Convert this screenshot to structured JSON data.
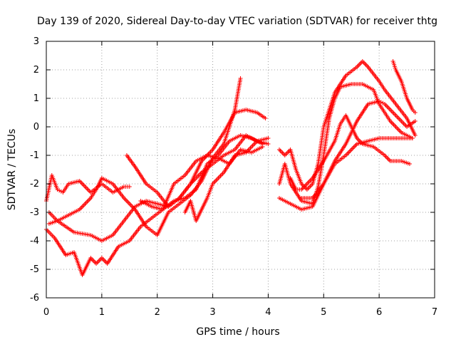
{
  "chart_data": {
    "type": "scatter",
    "title": "Day 139 of 2020, Sidereal Day-to-day VTEC variation (SDTVAR) for receiver thtg",
    "xlabel": "GPS time / hours",
    "ylabel": "SDTVAR / TECUs",
    "xlim": [
      0,
      7
    ],
    "ylim": [
      -6,
      3
    ],
    "grid": true,
    "marker": "+",
    "series_color": "#ff0000",
    "x_ticks": [
      "0",
      "1",
      "2",
      "3",
      "4",
      "5",
      "6",
      "7"
    ],
    "y_ticks": [
      "-6",
      "-5",
      "-4",
      "-3",
      "-2",
      "-1",
      "0",
      "1",
      "2",
      "3"
    ],
    "series": [
      {
        "points": [
          [
            0.0,
            -2.6
          ],
          [
            0.1,
            -1.7
          ],
          [
            0.2,
            -2.2
          ],
          [
            0.3,
            -2.3
          ],
          [
            0.4,
            -2.0
          ],
          [
            0.6,
            -1.9
          ],
          [
            0.8,
            -2.3
          ],
          [
            1.0,
            -2.0
          ],
          [
            1.2,
            -2.3
          ],
          [
            1.4,
            -2.1
          ],
          [
            1.5,
            -2.1
          ]
        ]
      },
      {
        "points": [
          [
            0.05,
            -3.0
          ],
          [
            0.2,
            -3.3
          ],
          [
            0.5,
            -3.7
          ],
          [
            0.8,
            -3.8
          ],
          [
            1.0,
            -4.0
          ],
          [
            1.2,
            -3.8
          ],
          [
            1.4,
            -3.3
          ],
          [
            1.6,
            -2.8
          ],
          [
            1.8,
            -2.6
          ],
          [
            2.0,
            -2.7
          ],
          [
            2.2,
            -2.8
          ],
          [
            2.4,
            -2.5
          ],
          [
            2.6,
            -2.0
          ],
          [
            2.8,
            -1.2
          ],
          [
            3.0,
            -0.8
          ],
          [
            3.2,
            -0.2
          ],
          [
            3.4,
            0.5
          ],
          [
            3.6,
            0.6
          ],
          [
            3.8,
            0.5
          ],
          [
            3.95,
            0.3
          ]
        ]
      },
      {
        "points": [
          [
            0.05,
            -3.4
          ],
          [
            0.2,
            -3.3
          ],
          [
            0.4,
            -3.1
          ],
          [
            0.6,
            -2.9
          ],
          [
            0.8,
            -2.5
          ],
          [
            0.9,
            -2.2
          ],
          [
            1.0,
            -1.8
          ],
          [
            1.2,
            -2.0
          ],
          [
            1.4,
            -2.5
          ],
          [
            1.6,
            -2.9
          ],
          [
            1.8,
            -3.5
          ],
          [
            2.0,
            -3.8
          ],
          [
            2.2,
            -3.0
          ],
          [
            2.4,
            -2.7
          ],
          [
            2.6,
            -2.4
          ],
          [
            2.8,
            -1.9
          ],
          [
            3.0,
            -1.1
          ],
          [
            3.2,
            -0.6
          ],
          [
            3.4,
            0.6
          ],
          [
            3.5,
            1.7
          ]
        ]
      },
      {
        "points": [
          [
            0.0,
            -3.6
          ],
          [
            0.15,
            -3.9
          ],
          [
            0.35,
            -4.5
          ],
          [
            0.5,
            -4.4
          ],
          [
            0.65,
            -5.2
          ],
          [
            0.8,
            -4.6
          ],
          [
            0.9,
            -4.8
          ],
          [
            1.0,
            -4.6
          ],
          [
            1.1,
            -4.8
          ],
          [
            1.3,
            -4.2
          ],
          [
            1.5,
            -4.0
          ],
          [
            1.7,
            -3.5
          ],
          [
            1.9,
            -3.2
          ],
          [
            2.1,
            -2.9
          ],
          [
            2.3,
            -2.6
          ],
          [
            2.5,
            -2.5
          ],
          [
            2.7,
            -2.2
          ],
          [
            2.9,
            -1.3
          ],
          [
            3.1,
            -1.0
          ],
          [
            3.3,
            -0.5
          ],
          [
            3.5,
            -0.3
          ],
          [
            3.7,
            -0.4
          ],
          [
            3.9,
            -0.6
          ]
        ]
      },
      {
        "points": [
          [
            1.45,
            -1.0
          ],
          [
            1.6,
            -1.4
          ],
          [
            1.8,
            -2.0
          ],
          [
            2.0,
            -2.3
          ],
          [
            2.2,
            -2.8
          ],
          [
            2.4,
            -2.5
          ],
          [
            2.6,
            -2.0
          ],
          [
            2.8,
            -1.6
          ],
          [
            3.0,
            -1.3
          ],
          [
            3.2,
            -1.0
          ],
          [
            3.4,
            -0.8
          ],
          [
            3.6,
            -0.3
          ],
          [
            3.8,
            -0.5
          ],
          [
            4.0,
            -0.4
          ]
        ]
      },
      {
        "points": [
          [
            1.7,
            -2.6
          ],
          [
            1.9,
            -2.8
          ],
          [
            2.1,
            -2.9
          ],
          [
            2.3,
            -2.0
          ],
          [
            2.5,
            -1.7
          ],
          [
            2.7,
            -1.2
          ],
          [
            2.9,
            -1.0
          ],
          [
            3.1,
            -1.1
          ],
          [
            3.3,
            -1.3
          ],
          [
            3.5,
            -0.8
          ],
          [
            3.7,
            -0.9
          ],
          [
            3.9,
            -0.7
          ]
        ]
      },
      {
        "points": [
          [
            2.5,
            -3.0
          ],
          [
            2.6,
            -2.6
          ],
          [
            2.7,
            -3.3
          ],
          [
            2.8,
            -2.9
          ],
          [
            2.9,
            -2.5
          ],
          [
            3.0,
            -2.0
          ],
          [
            3.2,
            -1.6
          ],
          [
            3.4,
            -1.0
          ],
          [
            3.6,
            -0.9
          ],
          [
            3.8,
            -0.5
          ],
          [
            4.0,
            -0.6
          ]
        ]
      },
      {
        "points": [
          [
            4.2,
            -0.8
          ],
          [
            4.3,
            -1.0
          ],
          [
            4.4,
            -0.8
          ],
          [
            4.5,
            -1.5
          ],
          [
            4.6,
            -2.0
          ],
          [
            4.7,
            -2.2
          ],
          [
            4.8,
            -2.0
          ],
          [
            4.9,
            -1.3
          ],
          [
            5.0,
            0.0
          ],
          [
            5.1,
            0.6
          ],
          [
            5.2,
            1.2
          ],
          [
            5.4,
            1.8
          ],
          [
            5.6,
            2.1
          ],
          [
            5.7,
            2.3
          ],
          [
            5.8,
            2.1
          ],
          [
            6.0,
            1.6
          ],
          [
            6.1,
            1.3
          ],
          [
            6.3,
            0.8
          ],
          [
            6.5,
            0.3
          ],
          [
            6.65,
            -0.3
          ]
        ]
      },
      {
        "points": [
          [
            4.2,
            -2.0
          ],
          [
            4.3,
            -1.3
          ],
          [
            4.4,
            -2.0
          ],
          [
            4.6,
            -2.6
          ],
          [
            4.8,
            -2.7
          ],
          [
            4.9,
            -2.1
          ],
          [
            5.0,
            -1.0
          ],
          [
            5.1,
            0.3
          ],
          [
            5.2,
            1.0
          ],
          [
            5.3,
            1.4
          ],
          [
            5.5,
            1.5
          ],
          [
            5.7,
            1.5
          ],
          [
            5.9,
            1.3
          ],
          [
            6.0,
            0.8
          ],
          [
            6.1,
            0.5
          ],
          [
            6.2,
            0.2
          ],
          [
            6.4,
            -0.2
          ],
          [
            6.6,
            -0.4
          ]
        ]
      },
      {
        "points": [
          [
            4.2,
            -2.5
          ],
          [
            4.4,
            -2.7
          ],
          [
            4.6,
            -2.9
          ],
          [
            4.8,
            -2.8
          ],
          [
            5.0,
            -2.0
          ],
          [
            5.2,
            -1.2
          ],
          [
            5.4,
            -0.6
          ],
          [
            5.6,
            0.2
          ],
          [
            5.8,
            0.8
          ],
          [
            6.0,
            0.9
          ],
          [
            6.1,
            0.8
          ],
          [
            6.3,
            0.4
          ],
          [
            6.5,
            0.0
          ],
          [
            6.65,
            0.2
          ]
        ]
      },
      {
        "points": [
          [
            4.4,
            -1.8
          ],
          [
            4.5,
            -2.2
          ],
          [
            4.6,
            -2.2
          ],
          [
            4.8,
            -1.8
          ],
          [
            5.0,
            -1.2
          ],
          [
            5.2,
            -0.5
          ],
          [
            5.3,
            0.1
          ],
          [
            5.4,
            0.4
          ],
          [
            5.5,
            0.0
          ],
          [
            5.6,
            -0.4
          ],
          [
            5.7,
            -0.6
          ],
          [
            5.9,
            -0.7
          ],
          [
            6.1,
            -1.0
          ],
          [
            6.2,
            -1.2
          ],
          [
            6.4,
            -1.2
          ],
          [
            6.55,
            -1.3
          ]
        ]
      },
      {
        "points": [
          [
            4.6,
            -2.5
          ],
          [
            4.8,
            -2.5
          ],
          [
            5.0,
            -2.0
          ],
          [
            5.2,
            -1.3
          ],
          [
            5.4,
            -1.0
          ],
          [
            5.6,
            -0.6
          ],
          [
            5.8,
            -0.5
          ],
          [
            6.0,
            -0.4
          ],
          [
            6.2,
            -0.4
          ],
          [
            6.4,
            -0.4
          ],
          [
            6.6,
            -0.4
          ]
        ]
      },
      {
        "points": [
          [
            6.25,
            2.3
          ],
          [
            6.3,
            2.0
          ],
          [
            6.4,
            1.6
          ],
          [
            6.5,
            1.0
          ],
          [
            6.6,
            0.6
          ],
          [
            6.65,
            0.5
          ]
        ]
      }
    ]
  }
}
